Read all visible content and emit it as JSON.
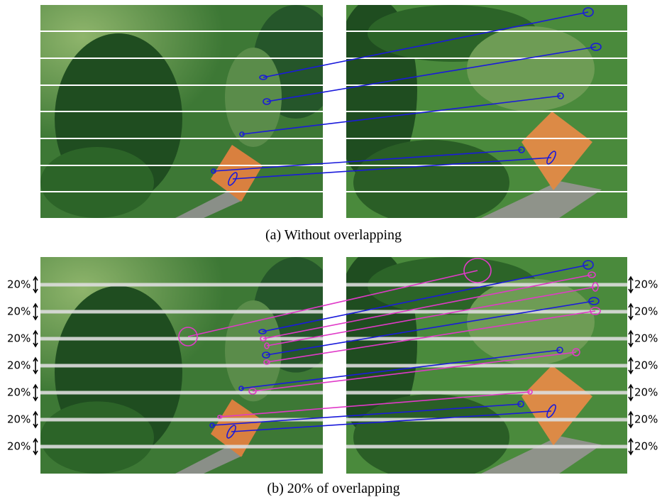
{
  "figure": {
    "panels": [
      {
        "caption": "(a) Without overlapping"
      },
      {
        "caption": "(b) 20% of overlapping",
        "left_labels": [
          "20%",
          "20%",
          "20%",
          "20%",
          "20%",
          "20%",
          "20%"
        ],
        "right_labels": [
          "20%",
          "20%",
          "20%",
          "20%",
          "20%",
          "20%",
          "20%"
        ]
      }
    ]
  }
}
